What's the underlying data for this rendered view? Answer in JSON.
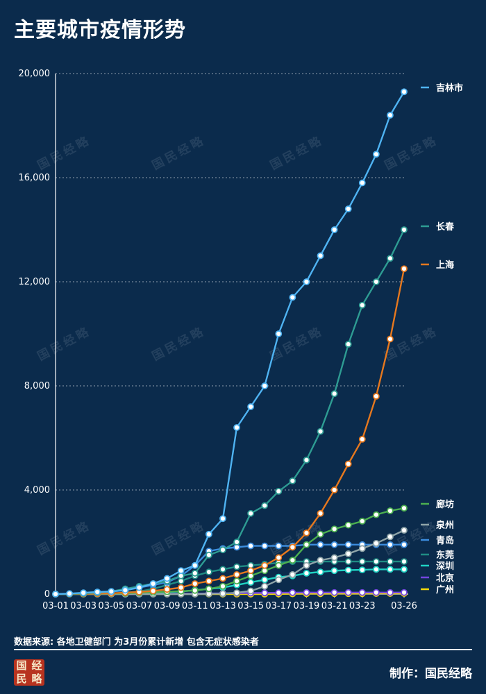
{
  "title": "主要城市疫情形势",
  "footer": {
    "source": "数据来源: 各地卫健部门 为3月份累计新增 包含无症状感染者",
    "credit": "制作：国民经略",
    "seal_chars": [
      "经",
      "国",
      "略",
      "民"
    ]
  },
  "watermark": "国民经略",
  "chart_data": {
    "type": "line",
    "title": "主要城市疫情形势",
    "x": [
      "03-01",
      "03-02",
      "03-03",
      "03-04",
      "03-05",
      "03-06",
      "03-07",
      "03-08",
      "03-09",
      "03-10",
      "03-11",
      "03-12",
      "03-13",
      "03-14",
      "03-15",
      "03-16",
      "03-17",
      "03-18",
      "03-19",
      "03-20",
      "03-21",
      "03-22",
      "03-23",
      "03-24",
      "03-25",
      "03-26"
    ],
    "x_tick_labels": [
      "03-01",
      "03-03",
      "03-05",
      "03-07",
      "03-09",
      "03-11",
      "03-13",
      "03-15",
      "03-17",
      "03-19",
      "03-21",
      "03-23",
      "03-26"
    ],
    "ylim": [
      0,
      20000
    ],
    "yticks": [
      0,
      4000,
      8000,
      12000,
      16000,
      20000
    ],
    "ytick_labels": [
      "0",
      "4,000",
      "8,000",
      "12,000",
      "16,000",
      "20,000"
    ],
    "grid": true,
    "legend": "right, inline at line ends",
    "series": [
      {
        "name": "吉林市",
        "color": "#4fb3f2",
        "values": [
          0,
          20,
          50,
          80,
          100,
          150,
          250,
          400,
          600,
          900,
          1100,
          2300,
          2900,
          6400,
          7200,
          8000,
          10000,
          11400,
          12000,
          13000,
          14000,
          14800,
          15800,
          16900,
          18400,
          19300
        ]
      },
      {
        "name": "长春",
        "color": "#2e9c93",
        "values": [
          0,
          10,
          30,
          60,
          100,
          200,
          300,
          400,
          500,
          700,
          800,
          1500,
          1700,
          2000,
          3100,
          3400,
          3950,
          4350,
          5150,
          6250,
          7700,
          9600,
          11100,
          12000,
          12900,
          14000
        ]
      },
      {
        "name": "上海",
        "color": "#e6781e",
        "values": [
          0,
          5,
          10,
          20,
          30,
          60,
          80,
          120,
          180,
          250,
          400,
          500,
          600,
          750,
          900,
          1100,
          1400,
          1800,
          2350,
          3100,
          4000,
          5000,
          5950,
          7600,
          9800,
          12500
        ]
      },
      {
        "name": "廊坊",
        "color": "#4caf50",
        "values": [
          0,
          2,
          5,
          10,
          20,
          30,
          50,
          70,
          90,
          110,
          140,
          200,
          300,
          500,
          700,
          900,
          1100,
          1300,
          1900,
          2300,
          2500,
          2650,
          2800,
          3050,
          3200,
          3300
        ]
      },
      {
        "name": "泉州",
        "color": "#8fa4a8",
        "values": [
          0,
          0,
          0,
          0,
          0,
          0,
          0,
          0,
          0,
          0,
          0,
          10,
          20,
          50,
          120,
          300,
          550,
          750,
          1100,
          1300,
          1400,
          1550,
          1750,
          1950,
          2200,
          2450
        ]
      },
      {
        "name": "青岛",
        "color": "#3c8dde",
        "values": [
          0,
          10,
          30,
          60,
          100,
          150,
          250,
          350,
          450,
          700,
          1100,
          1650,
          1750,
          1800,
          1850,
          1850,
          1850,
          1850,
          1900,
          1900,
          1900,
          1900,
          1900,
          1900,
          1900,
          1900
        ]
      },
      {
        "name": "东莞",
        "color": "#1f8c84",
        "values": [
          0,
          2,
          5,
          10,
          20,
          50,
          100,
          200,
          350,
          500,
          700,
          850,
          950,
          1050,
          1100,
          1150,
          1200,
          1250,
          1250,
          1250,
          1250,
          1250,
          1250,
          1250,
          1250,
          1250
        ]
      },
      {
        "name": "深圳",
        "color": "#1fd2c3",
        "values": [
          0,
          2,
          5,
          10,
          20,
          30,
          40,
          60,
          80,
          100,
          150,
          200,
          250,
          350,
          450,
          550,
          650,
          700,
          800,
          850,
          900,
          920,
          930,
          950,
          950,
          950
        ]
      },
      {
        "name": "北京",
        "color": "#7446e0",
        "values": [
          0,
          0,
          0,
          0,
          0,
          0,
          0,
          5,
          10,
          15,
          20,
          25,
          30,
          35,
          40,
          45,
          50,
          55,
          60,
          60,
          60,
          60,
          60,
          60,
          60,
          60
        ]
      },
      {
        "name": "广州",
        "color": "#f5d90a",
        "values": [
          0,
          0,
          0,
          0,
          0,
          0,
          0,
          0,
          0,
          0,
          0,
          0,
          0,
          0,
          0,
          0,
          5,
          10,
          15,
          15,
          20,
          20,
          20,
          25,
          25,
          25
        ]
      }
    ]
  }
}
